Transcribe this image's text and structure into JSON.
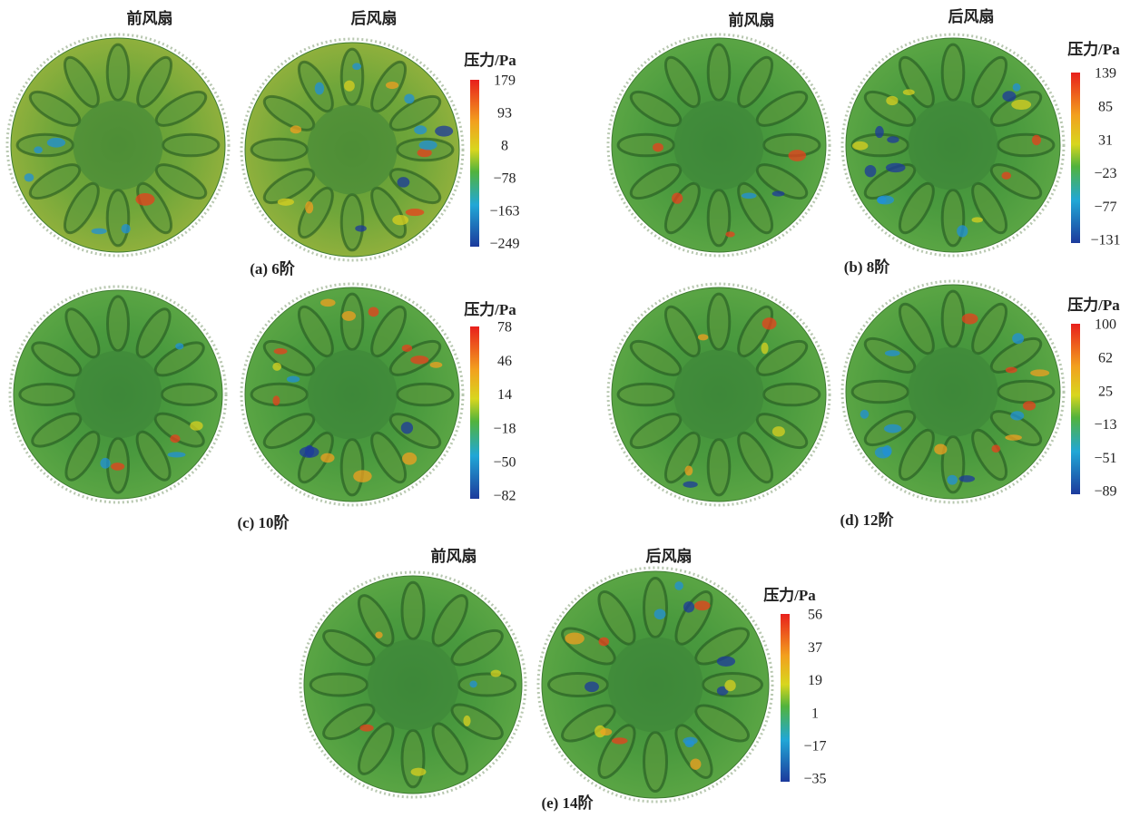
{
  "panels": [
    {
      "caption": "(a) 6阶",
      "front_label": "前风扇",
      "rear_label": "后风扇",
      "legend": {
        "title": "压力/Pa",
        "ticks": [
          "179",
          "93",
          "8",
          "−78",
          "−163",
          "−249"
        ]
      }
    },
    {
      "caption": "(b) 8阶",
      "front_label": "前风扇",
      "rear_label": "后风扇",
      "legend": {
        "title": "压力/Pa",
        "ticks": [
          "139",
          "85",
          "31",
          "−23",
          "−77",
          "−131"
        ]
      }
    },
    {
      "caption": "(c) 10阶",
      "legend": {
        "title": "压力/Pa",
        "ticks": [
          "78",
          "46",
          "14",
          "−18",
          "−50",
          "−82"
        ]
      }
    },
    {
      "caption": "(d) 12阶",
      "legend": {
        "title": "压力/Pa",
        "ticks": [
          "100",
          "62",
          "25",
          "−13",
          "−51",
          "−89"
        ]
      }
    },
    {
      "caption": "(e) 14阶",
      "front_label": "前风扇",
      "rear_label": "后风扇",
      "legend": {
        "title": "压力/Pa",
        "ticks": [
          "56",
          "37",
          "19",
          "1",
          "−17",
          "−35"
        ]
      }
    }
  ]
}
